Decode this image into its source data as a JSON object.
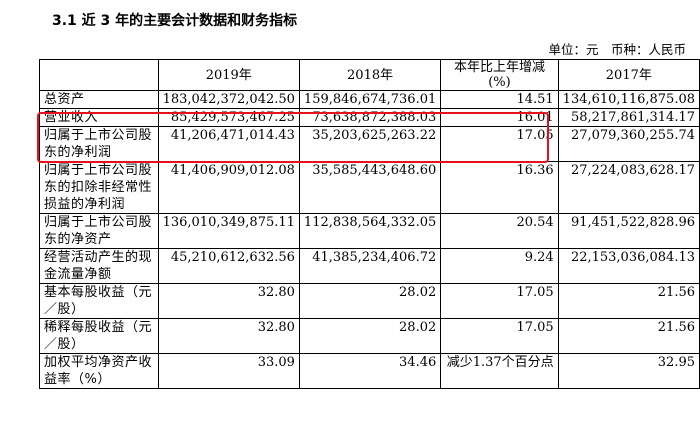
{
  "section_title": "3.1 近 3 年的主要会计数据和财务指标",
  "unit_line": "单位：元　币种：人民币",
  "table": {
    "headers": [
      "",
      "2019年",
      "2018年",
      "本年比上年增减(%)",
      "2017年"
    ],
    "rows": [
      {
        "label": "总资产",
        "y2019": "183,042,372,042.50",
        "y2018": "159,846,674,736.01",
        "change": "14.51",
        "y2017": "134,610,116,875.08"
      },
      {
        "label": "营业收入",
        "y2019": "85,429,573,467.25",
        "y2018": "73,638,872,388.03",
        "change": "16.01",
        "y2017": "58,217,861,314.17"
      },
      {
        "label": "归属于上市公司股东的净利润",
        "y2019": "41,206,471,014.43",
        "y2018": "35,203,625,263.22",
        "change": "17.05",
        "y2017": "27,079,360,255.74"
      },
      {
        "label": "归属于上市公司股东的扣除非经常性损益的净利润",
        "y2019": "41,406,909,012.08",
        "y2018": "35,585,443,648.60",
        "change": "16.36",
        "y2017": "27,224,083,628.17"
      },
      {
        "label": "归属于上市公司股东的净资产",
        "y2019": "136,010,349,875.11",
        "y2018": "112,838,564,332.05",
        "change": "20.54",
        "y2017": "91,451,522,828.96"
      },
      {
        "label": "经营活动产生的现金流量净额",
        "y2019": "45,210,612,632.56",
        "y2018": "41,385,234,406.72",
        "change": "9.24",
        "y2017": "22,153,036,084.13"
      },
      {
        "label": "基本每股收益（元／股）",
        "y2019": "32.80",
        "y2018": "28.02",
        "change": "17.05",
        "y2017": "21.56"
      },
      {
        "label": "稀释每股收益（元／股）",
        "y2019": "32.80",
        "y2018": "28.02",
        "change": "17.05",
        "y2017": "21.56"
      },
      {
        "label": "加权平均净资产收益率（%）",
        "y2019": "33.09",
        "y2018": "34.46",
        "change": "减少1.37个百分点",
        "y2017": "32.95"
      }
    ]
  },
  "highlight_color": "#e8101a"
}
